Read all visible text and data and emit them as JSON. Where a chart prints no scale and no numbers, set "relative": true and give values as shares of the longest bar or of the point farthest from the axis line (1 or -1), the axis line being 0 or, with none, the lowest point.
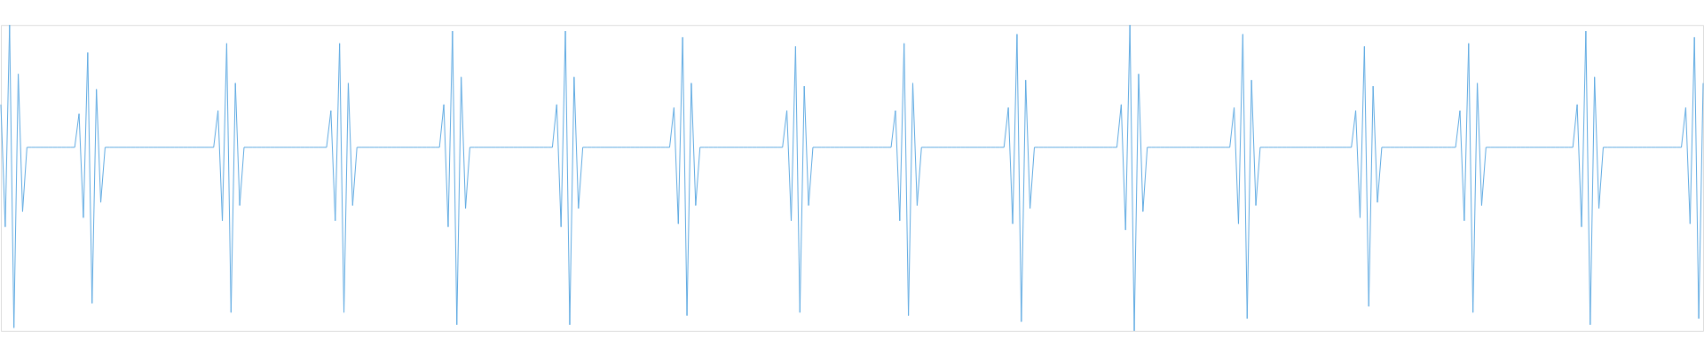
{
  "chart_data": {
    "type": "line",
    "relative": true,
    "tick_labels": false,
    "grid": false,
    "legend": false,
    "marker": "none",
    "line_style": "solid",
    "categories": [
      null,
      null,
      null,
      null,
      null,
      null,
      null,
      null,
      null,
      null,
      null,
      null,
      null,
      null,
      null,
      null,
      null,
      null,
      null,
      null,
      null,
      null,
      null,
      null,
      null,
      null,
      null,
      null,
      null,
      null,
      null,
      null,
      null,
      null,
      null,
      null,
      null,
      null,
      null,
      null,
      null,
      null,
      null,
      null,
      null,
      null,
      null,
      null,
      null,
      null,
      null,
      null,
      null,
      null,
      null,
      null,
      null,
      null,
      null,
      null,
      null,
      null,
      null,
      null,
      null,
      null,
      null,
      null,
      null,
      null,
      null,
      null,
      null,
      null,
      null,
      null,
      null,
      null,
      null,
      null,
      null,
      null,
      null,
      null,
      null,
      null,
      null,
      null,
      null,
      null,
      null,
      null,
      null,
      null,
      null,
      null,
      null,
      null,
      null,
      null,
      null,
      null,
      null,
      null,
      null,
      null,
      null,
      null,
      null,
      null,
      null,
      null,
      null,
      null,
      null,
      null,
      null,
      null,
      null,
      null,
      null,
      null,
      null,
      null,
      null,
      null,
      null,
      null,
      null,
      null,
      null,
      null,
      null,
      null,
      null,
      null,
      null,
      null,
      null,
      null,
      null,
      null,
      null,
      null,
      null,
      null,
      null,
      null,
      null,
      null,
      null,
      null,
      null,
      null,
      null,
      null,
      null,
      null,
      null,
      null,
      null,
      null,
      null,
      null,
      null,
      null,
      null,
      null,
      null,
      null,
      null,
      null,
      null,
      null,
      null,
      null,
      null,
      null,
      null,
      null,
      null,
      null,
      null,
      null,
      null,
      null,
      null,
      null,
      null,
      null,
      null,
      null,
      null,
      null,
      null,
      null,
      null,
      null,
      null,
      null,
      null,
      null,
      null,
      null,
      null,
      null,
      null,
      null,
      null,
      null,
      null,
      null,
      null,
      null,
      null,
      null,
      null,
      null,
      null,
      null,
      null,
      null,
      null,
      null,
      null,
      null,
      null,
      null,
      null,
      null,
      null,
      null,
      null,
      null,
      null,
      null,
      null,
      null,
      null,
      null,
      null,
      null,
      null,
      null,
      null,
      null,
      null,
      null,
      null,
      null,
      null,
      null,
      null,
      null,
      null,
      null,
      null,
      null,
      null,
      null,
      null,
      null,
      null,
      null,
      null,
      null,
      null,
      null,
      null,
      null,
      null,
      null,
      null,
      null,
      null,
      null,
      null,
      null,
      null,
      null,
      null,
      null,
      null,
      null,
      null,
      null,
      null,
      null,
      null,
      null,
      null,
      null,
      null,
      null,
      null,
      null,
      null,
      null,
      null,
      null,
      null,
      null,
      null,
      null,
      null,
      null,
      null,
      null,
      null,
      null,
      null,
      null,
      null,
      null,
      null,
      null,
      null,
      null,
      null,
      null,
      null,
      null,
      null,
      null,
      null,
      null,
      null,
      null,
      null,
      null,
      null,
      null,
      null,
      null,
      null,
      null,
      null,
      null,
      null,
      null,
      null,
      null,
      null,
      null,
      null,
      null,
      null,
      null,
      null,
      null,
      null,
      null,
      null,
      null,
      null,
      null,
      null,
      null,
      null,
      null,
      null,
      null,
      null,
      null,
      null,
      null,
      null,
      null,
      null,
      null,
      null,
      null,
      null,
      null,
      null,
      null,
      null,
      null,
      null,
      null,
      null,
      null,
      null,
      null,
      null,
      null,
      null,
      null,
      null,
      null,
      null,
      null,
      null
    ],
    "series": [
      {
        "color": "#5eaae2",
        "values": [
          0.74,
          0.34,
          1.0,
          0.01,
          0.84,
          0.39,
          0.6,
          0.6,
          0.6,
          0.6,
          0.6,
          0.6,
          0.6,
          0.6,
          0.6,
          0.6,
          0.6,
          0.6,
          0.71,
          0.37,
          0.91,
          0.09,
          0.79,
          0.42,
          0.6,
          0.6,
          0.6,
          0.6,
          0.6,
          0.6,
          0.6,
          0.6,
          0.6,
          0.6,
          0.6,
          0.6,
          0.6,
          0.6,
          0.6,
          0.6,
          0.6,
          0.6,
          0.6,
          0.6,
          0.6,
          0.6,
          0.6,
          0.6,
          0.6,
          0.6,
          0.72,
          0.36,
          0.94,
          0.06,
          0.81,
          0.41,
          0.6,
          0.6,
          0.6,
          0.6,
          0.6,
          0.6,
          0.6,
          0.6,
          0.6,
          0.6,
          0.6,
          0.6,
          0.6,
          0.6,
          0.6,
          0.6,
          0.6,
          0.6,
          0.6,
          0.6,
          0.72,
          0.36,
          0.94,
          0.06,
          0.81,
          0.41,
          0.6,
          0.6,
          0.6,
          0.6,
          0.6,
          0.6,
          0.6,
          0.6,
          0.6,
          0.6,
          0.6,
          0.6,
          0.6,
          0.6,
          0.6,
          0.6,
          0.6,
          0.6,
          0.6,
          0.6,
          0.74,
          0.34,
          0.98,
          0.02,
          0.83,
          0.4,
          0.6,
          0.6,
          0.6,
          0.6,
          0.6,
          0.6,
          0.6,
          0.6,
          0.6,
          0.6,
          0.6,
          0.6,
          0.6,
          0.6,
          0.6,
          0.6,
          0.6,
          0.6,
          0.6,
          0.6,
          0.74,
          0.34,
          0.98,
          0.02,
          0.83,
          0.4,
          0.6,
          0.6,
          0.6,
          0.6,
          0.6,
          0.6,
          0.6,
          0.6,
          0.6,
          0.6,
          0.6,
          0.6,
          0.6,
          0.6,
          0.6,
          0.6,
          0.6,
          0.6,
          0.6,
          0.6,
          0.6,
          0.73,
          0.35,
          0.96,
          0.05,
          0.81,
          0.41,
          0.6,
          0.6,
          0.6,
          0.6,
          0.6,
          0.6,
          0.6,
          0.6,
          0.6,
          0.6,
          0.6,
          0.6,
          0.6,
          0.6,
          0.6,
          0.6,
          0.6,
          0.6,
          0.6,
          0.6,
          0.72,
          0.36,
          0.93,
          0.06,
          0.8,
          0.41,
          0.6,
          0.6,
          0.6,
          0.6,
          0.6,
          0.6,
          0.6,
          0.6,
          0.6,
          0.6,
          0.6,
          0.6,
          0.6,
          0.6,
          0.6,
          0.6,
          0.6,
          0.6,
          0.6,
          0.72,
          0.36,
          0.94,
          0.05,
          0.81,
          0.41,
          0.6,
          0.6,
          0.6,
          0.6,
          0.6,
          0.6,
          0.6,
          0.6,
          0.6,
          0.6,
          0.6,
          0.6,
          0.6,
          0.6,
          0.6,
          0.6,
          0.6,
          0.6,
          0.6,
          0.6,
          0.73,
          0.35,
          0.97,
          0.03,
          0.82,
          0.4,
          0.6,
          0.6,
          0.6,
          0.6,
          0.6,
          0.6,
          0.6,
          0.6,
          0.6,
          0.6,
          0.6,
          0.6,
          0.6,
          0.6,
          0.6,
          0.6,
          0.6,
          0.6,
          0.6,
          0.6,
          0.74,
          0.33,
          1.0,
          0.0,
          0.84,
          0.39,
          0.6,
          0.6,
          0.6,
          0.6,
          0.6,
          0.6,
          0.6,
          0.6,
          0.6,
          0.6,
          0.6,
          0.6,
          0.6,
          0.6,
          0.6,
          0.6,
          0.6,
          0.6,
          0.6,
          0.6,
          0.73,
          0.35,
          0.97,
          0.04,
          0.82,
          0.41,
          0.6,
          0.6,
          0.6,
          0.6,
          0.6,
          0.6,
          0.6,
          0.6,
          0.6,
          0.6,
          0.6,
          0.6,
          0.6,
          0.6,
          0.6,
          0.6,
          0.6,
          0.6,
          0.6,
          0.6,
          0.6,
          0.6,
          0.72,
          0.37,
          0.93,
          0.08,
          0.8,
          0.42,
          0.6,
          0.6,
          0.6,
          0.6,
          0.6,
          0.6,
          0.6,
          0.6,
          0.6,
          0.6,
          0.6,
          0.6,
          0.6,
          0.6,
          0.6,
          0.6,
          0.6,
          0.6,
          0.72,
          0.36,
          0.94,
          0.06,
          0.81,
          0.41,
          0.6,
          0.6,
          0.6,
          0.6,
          0.6,
          0.6,
          0.6,
          0.6,
          0.6,
          0.6,
          0.6,
          0.6,
          0.6,
          0.6,
          0.6,
          0.6,
          0.6,
          0.6,
          0.6,
          0.6,
          0.6,
          0.74,
          0.34,
          0.98,
          0.02,
          0.83,
          0.4,
          0.6,
          0.6,
          0.6,
          0.6,
          0.6,
          0.6,
          0.6,
          0.6,
          0.6,
          0.6,
          0.6,
          0.6,
          0.6,
          0.6,
          0.6,
          0.6,
          0.6,
          0.6,
          0.6,
          0.73,
          0.35,
          0.96,
          0.04,
          0.81
        ]
      }
    ]
  }
}
